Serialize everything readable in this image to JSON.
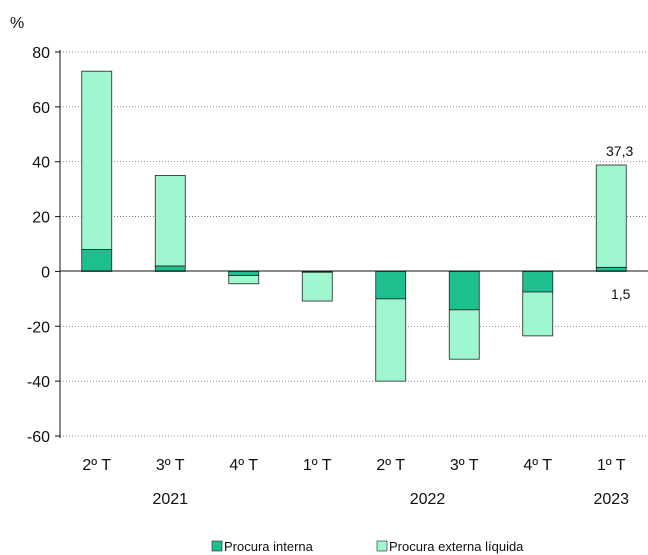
{
  "chart_data": {
    "type": "bar",
    "stacked": true,
    "unit_label": "%",
    "quarters": [
      "2º T",
      "3º T",
      "4º T",
      "1º T",
      "2º T",
      "3º T",
      "4º T",
      "1º T"
    ],
    "years": [
      {
        "label": "2021",
        "span": [
          0,
          2
        ]
      },
      {
        "label": "2022",
        "span": [
          3,
          6
        ]
      },
      {
        "label": "2023",
        "span": [
          7,
          7
        ]
      }
    ],
    "series": [
      {
        "name": "Procura interna",
        "color": "#1dbf8f",
        "values": [
          8.0,
          2.0,
          -1.5,
          -0.3,
          -10.0,
          -14.0,
          -7.5,
          1.5
        ]
      },
      {
        "name": "Procura externa líquida",
        "color": "#9ff7cf",
        "values": [
          65.0,
          33.0,
          -3.0,
          -10.5,
          -30.0,
          -18.0,
          -16.0,
          37.3
        ]
      }
    ],
    "ylim": [
      -60,
      80
    ],
    "yticks": [
      "80",
      "60",
      "40",
      "20",
      "0",
      "-20",
      "-40",
      "-60"
    ],
    "data_labels": {
      "top": "37,3",
      "bottom": "1,5"
    },
    "grid": true,
    "legend": "bottom-center"
  }
}
